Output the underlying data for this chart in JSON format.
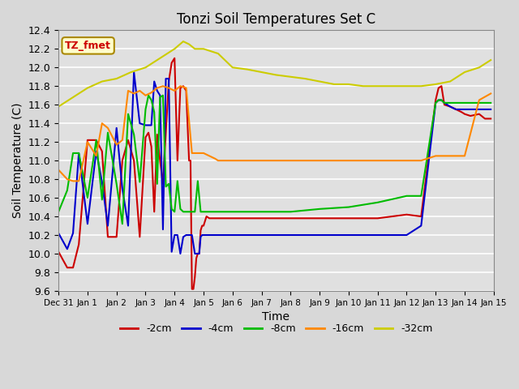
{
  "title": "Tonzi Soil Temperatures Set C",
  "xlabel": "Time",
  "ylabel": "Soil Temperature (C)",
  "ylim": [
    9.6,
    12.4
  ],
  "bg_color": "#d8d8d8",
  "plot_bg_color": "#e0e0e0",
  "annotation_text": "TZ_fmet",
  "annotation_bg": "#ffffcc",
  "annotation_border": "#aa8800",
  "legend_labels": [
    "-2cm",
    "-4cm",
    "-8cm",
    "-16cm",
    "-32cm"
  ],
  "legend_colors": [
    "#cc0000",
    "#0000cc",
    "#00bb00",
    "#ff8800",
    "#cccc00"
  ],
  "line_width": 1.5,
  "x_tick_labels": [
    "Dec 31",
    "Jan 1",
    "Jan 2",
    "Jan 3",
    "Jan 4",
    "Jan 5",
    "Jan 6",
    "Jan 7",
    "Jan 8",
    "Jan 9",
    "Jan 10",
    "Jan 11",
    "Jan 12",
    "Jan 13",
    "Jan 14",
    "Jan 15"
  ],
  "yticks": [
    9.6,
    9.8,
    10.0,
    10.2,
    10.4,
    10.6,
    10.8,
    11.0,
    11.2,
    11.4,
    11.6,
    11.8,
    12.0,
    12.2,
    12.4
  ],
  "series": {
    "red_2cm": {
      "x": [
        0,
        0.3,
        0.5,
        0.7,
        1.0,
        1.3,
        1.5,
        1.7,
        2.0,
        2.2,
        2.4,
        2.6,
        2.8,
        3.0,
        3.1,
        3.2,
        3.3,
        3.4,
        3.5,
        3.6,
        3.7,
        3.8,
        3.9,
        4.0,
        4.1,
        4.2,
        4.3,
        4.4,
        4.5,
        4.55,
        4.6,
        4.65,
        4.7,
        4.75,
        4.8,
        4.85,
        4.9,
        4.95,
        5.0,
        5.05,
        5.1,
        5.2,
        5.3,
        5.4,
        5.5,
        5.6,
        5.7,
        5.8,
        6.0,
        6.5,
        7.0,
        7.5,
        8.0,
        8.5,
        9.0,
        9.5,
        10.0,
        10.5,
        11.0,
        11.5,
        12.0,
        12.5,
        13.0,
        13.1,
        13.2,
        13.3,
        13.5,
        13.7,
        13.9,
        14.0,
        14.2,
        14.5,
        14.7,
        14.9
      ],
      "y": [
        10.02,
        9.85,
        9.85,
        10.1,
        11.22,
        11.22,
        11.1,
        10.18,
        10.18,
        11.0,
        11.22,
        11.0,
        10.18,
        11.25,
        11.3,
        11.15,
        10.45,
        11.28,
        11.0,
        10.75,
        11.3,
        11.85,
        12.05,
        12.1,
        11.0,
        11.78,
        11.8,
        11.75,
        11.0,
        11.0,
        9.62,
        9.62,
        9.75,
        9.95,
        10.0,
        10.0,
        10.25,
        10.3,
        10.3,
        10.35,
        10.4,
        10.38,
        10.38,
        10.38,
        10.38,
        10.38,
        10.38,
        10.38,
        10.38,
        10.38,
        10.38,
        10.38,
        10.38,
        10.38,
        10.38,
        10.38,
        10.38,
        10.38,
        10.38,
        10.4,
        10.42,
        10.4,
        11.65,
        11.78,
        11.8,
        11.6,
        11.58,
        11.55,
        11.52,
        11.5,
        11.48,
        11.5,
        11.45,
        11.45
      ]
    },
    "blue_4cm": {
      "x": [
        0,
        0.3,
        0.5,
        0.7,
        1.0,
        1.3,
        1.5,
        1.7,
        2.0,
        2.2,
        2.4,
        2.6,
        2.8,
        3.0,
        3.1,
        3.2,
        3.3,
        3.4,
        3.5,
        3.6,
        3.7,
        3.8,
        3.9,
        4.0,
        4.1,
        4.2,
        4.3,
        4.4,
        4.5,
        4.6,
        4.7,
        4.8,
        4.85,
        4.9,
        4.95,
        5.0,
        5.05,
        5.1,
        5.2,
        5.3,
        5.5,
        6.0,
        6.5,
        7.0,
        8.0,
        9.0,
        10.0,
        11.0,
        12.0,
        12.5,
        13.0,
        13.1,
        13.2,
        13.3,
        13.5,
        13.7,
        14.0,
        14.5,
        14.9
      ],
      "y": [
        10.22,
        10.05,
        10.22,
        11.08,
        10.32,
        11.1,
        10.77,
        10.3,
        11.35,
        10.7,
        10.3,
        11.95,
        11.4,
        11.38,
        11.38,
        11.38,
        11.85,
        11.75,
        11.7,
        10.26,
        11.88,
        11.88,
        10.02,
        10.2,
        10.2,
        10.0,
        10.18,
        10.2,
        10.2,
        10.2,
        10.0,
        10.0,
        10.0,
        10.18,
        10.2,
        10.2,
        10.2,
        10.2,
        10.2,
        10.2,
        10.2,
        10.2,
        10.2,
        10.2,
        10.2,
        10.2,
        10.2,
        10.2,
        10.2,
        10.3,
        11.62,
        11.65,
        11.65,
        11.62,
        11.58,
        11.55,
        11.55,
        11.55,
        11.55
      ]
    },
    "green_8cm": {
      "x": [
        0,
        0.3,
        0.5,
        0.7,
        1.0,
        1.3,
        1.5,
        1.7,
        2.0,
        2.2,
        2.4,
        2.6,
        2.8,
        3.0,
        3.1,
        3.2,
        3.3,
        3.4,
        3.5,
        3.6,
        3.7,
        3.8,
        3.9,
        4.0,
        4.1,
        4.2,
        4.3,
        4.4,
        4.5,
        4.6,
        4.7,
        4.8,
        4.9,
        5.0,
        5.1,
        5.2,
        5.3,
        5.4,
        5.5,
        5.6,
        6.0,
        6.5,
        7.0,
        8.0,
        9.0,
        10.0,
        11.0,
        12.0,
        12.5,
        13.0,
        13.1,
        13.2,
        13.3,
        13.5,
        13.7,
        14.0,
        14.5,
        14.9
      ],
      "y": [
        10.45,
        10.68,
        11.08,
        11.08,
        10.6,
        11.22,
        10.58,
        11.3,
        10.75,
        10.32,
        11.5,
        11.28,
        10.77,
        11.55,
        11.7,
        11.65,
        11.52,
        10.75,
        11.68,
        11.7,
        10.72,
        10.75,
        10.48,
        10.45,
        10.78,
        10.48,
        10.45,
        10.45,
        10.45,
        10.45,
        10.45,
        10.78,
        10.45,
        10.45,
        10.45,
        10.45,
        10.45,
        10.45,
        10.45,
        10.45,
        10.45,
        10.45,
        10.45,
        10.45,
        10.48,
        10.5,
        10.55,
        10.62,
        10.62,
        11.62,
        11.65,
        11.65,
        11.62,
        11.62,
        11.62,
        11.62,
        11.62,
        11.62
      ]
    },
    "orange_16cm": {
      "x": [
        0,
        0.3,
        0.5,
        0.7,
        1.0,
        1.3,
        1.5,
        1.7,
        2.0,
        2.2,
        2.4,
        2.6,
        2.8,
        3.0,
        3.2,
        3.4,
        3.6,
        3.8,
        4.0,
        4.2,
        4.4,
        4.6,
        4.8,
        5.0,
        5.2,
        5.4,
        5.5,
        6.0,
        6.5,
        7.0,
        8.0,
        9.0,
        10.0,
        11.0,
        12.0,
        12.5,
        13.0,
        13.2,
        13.5,
        13.7,
        14.0,
        14.5,
        14.9
      ],
      "y": [
        10.9,
        10.8,
        10.78,
        10.78,
        11.2,
        11.05,
        11.4,
        11.35,
        11.17,
        11.22,
        11.75,
        11.72,
        11.75,
        11.7,
        11.73,
        11.78,
        11.8,
        11.78,
        11.75,
        11.8,
        11.78,
        11.08,
        11.08,
        11.08,
        11.05,
        11.02,
        11.0,
        11.0,
        11.0,
        11.0,
        11.0,
        11.0,
        11.0,
        11.0,
        11.0,
        11.0,
        11.05,
        11.05,
        11.05,
        11.05,
        11.05,
        11.65,
        11.72
      ]
    },
    "yellow_32cm": {
      "x": [
        0,
        0.5,
        1.0,
        1.5,
        2.0,
        2.5,
        3.0,
        3.5,
        4.0,
        4.3,
        4.5,
        4.7,
        5.0,
        5.5,
        6.0,
        6.5,
        7.0,
        7.5,
        8.0,
        8.5,
        9.0,
        9.5,
        10.0,
        10.5,
        11.0,
        11.5,
        12.0,
        12.5,
        13.0,
        13.5,
        14.0,
        14.5,
        14.9
      ],
      "y": [
        11.58,
        11.68,
        11.78,
        11.85,
        11.88,
        11.95,
        12.0,
        12.1,
        12.2,
        12.28,
        12.25,
        12.2,
        12.2,
        12.15,
        12.0,
        11.98,
        11.95,
        11.92,
        11.9,
        11.88,
        11.85,
        11.82,
        11.82,
        11.8,
        11.8,
        11.8,
        11.8,
        11.8,
        11.82,
        11.85,
        11.95,
        12.0,
        12.08
      ]
    }
  }
}
